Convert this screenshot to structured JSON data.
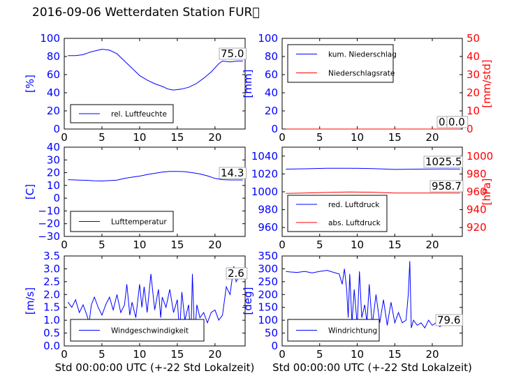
{
  "figure": {
    "title": "2016-09-06 Wetterdaten Station FUR\u0000"
  },
  "colors": {
    "primary": "#0000ff",
    "secondary": "#ff0000",
    "axis": "#000000"
  },
  "chart_data": [
    {
      "id": "humidity",
      "type": "line",
      "xlim": [
        0,
        24
      ],
      "ylim": [
        0,
        100
      ],
      "yticks": [
        "0",
        "20",
        "40",
        "60",
        "80",
        "100"
      ],
      "xticks": [
        "0",
        "5",
        "10",
        "15",
        "20"
      ],
      "ylabel": "[%]",
      "xlabel": "",
      "annotation": "75.0",
      "legend": {
        "placement": "lower-left",
        "entries": [
          "rel. Luftfeuchte"
        ]
      },
      "series": [
        {
          "name": "rel. Luftfeuchte",
          "color": "#0000ff",
          "x": [
            0.5,
            1.5,
            2.5,
            3.5,
            4.5,
            5.0,
            6.0,
            7.0,
            8.0,
            9.0,
            10.0,
            11.0,
            12.0,
            13.0,
            13.8,
            14.5,
            15.5,
            16.5,
            17.5,
            18.5,
            19.5,
            20.5,
            21.0,
            22.0,
            23.0,
            23.7
          ],
          "y": [
            81,
            81,
            82,
            85,
            87,
            88,
            87,
            83,
            75,
            67,
            59,
            54,
            50,
            47,
            44,
            43,
            44,
            46,
            50,
            56,
            63,
            72,
            75,
            74,
            75,
            75
          ]
        }
      ]
    },
    {
      "id": "precipitation",
      "type": "line",
      "xlim": [
        0,
        24
      ],
      "ylim": [
        0,
        100
      ],
      "yticks": [
        "0",
        "20",
        "40",
        "60",
        "80",
        "100"
      ],
      "y2lim": [
        0,
        50
      ],
      "y2ticks": [
        "0",
        "10",
        "20",
        "30",
        "40",
        "50"
      ],
      "xticks": [
        "0",
        "5",
        "10",
        "15",
        "20"
      ],
      "ylabel": "[mm]",
      "y2label": "[mm/std]",
      "xlabel": "",
      "annotations": [
        "0.0",
        "0.0"
      ],
      "legend": {
        "placement": "upper-left",
        "entries": [
          "kum. Niederschlag",
          "Niederschlagsrate"
        ]
      },
      "series": [
        {
          "name": "kum. Niederschlag",
          "color": "#0000ff",
          "x": [
            0.5,
            23.7
          ],
          "y": [
            0,
            0
          ]
        },
        {
          "name": "Niederschlagsrate",
          "color": "#ff0000",
          "axis": "right",
          "x": [
            0.5,
            23.7
          ],
          "y": [
            0,
            0
          ]
        }
      ]
    },
    {
      "id": "temperature",
      "type": "line",
      "xlim": [
        0,
        24
      ],
      "ylim": [
        -30,
        40
      ],
      "yticks": [
        "−30",
        "−20",
        "−10",
        "0",
        "10",
        "20",
        "30",
        "40"
      ],
      "xticks": [
        "0",
        "5",
        "10",
        "15",
        "20"
      ],
      "ylabel": "[C]",
      "xlabel": "",
      "annotation": "14.3",
      "legend": {
        "placement": "lower-left",
        "entries": [
          "Lufttemperatur"
        ]
      },
      "series": [
        {
          "name": "Lufttemperatur",
          "color": "#0000ff",
          "x": [
            0.5,
            2.0,
            3.0,
            4.0,
            5.0,
            6.0,
            7.0,
            8.0,
            9.0,
            10.0,
            11.0,
            12.0,
            13.0,
            14.0,
            15.0,
            16.0,
            17.0,
            18.0,
            19.0,
            20.0,
            21.0,
            22.0,
            23.0,
            23.7
          ],
          "y": [
            14.5,
            14.2,
            14,
            13.6,
            13.5,
            13.8,
            14.2,
            15.5,
            16.5,
            17.3,
            18.5,
            19.5,
            20.5,
            21,
            21,
            20.8,
            20,
            19,
            17.5,
            15.5,
            14.5,
            14.3,
            14.3,
            14.3
          ]
        }
      ]
    },
    {
      "id": "pressure",
      "type": "line",
      "xlim": [
        0,
        24
      ],
      "ylim": [
        950,
        1050
      ],
      "yticks": [
        "960",
        "980",
        "1000",
        "1020",
        "1040"
      ],
      "y2lim": [
        910,
        1010
      ],
      "y2ticks": [
        "920",
        "940",
        "960",
        "980",
        "1000"
      ],
      "xticks": [
        "0",
        "5",
        "10",
        "15",
        "20"
      ],
      "ylabel": "",
      "y2label": "[hPa]",
      "xlabel": "",
      "annotations": [
        "1025.5",
        "958.7"
      ],
      "legend": {
        "placement": "lower-left",
        "entries": [
          "red. Luftdruck",
          "abs. Luftdruck"
        ]
      },
      "series": [
        {
          "name": "red. Luftdruck",
          "color": "#0000ff",
          "x": [
            0.5,
            3.0,
            6.0,
            9.0,
            12.0,
            15.0,
            18.0,
            21.0,
            23.7
          ],
          "y": [
            1025.4,
            1025.8,
            1026.3,
            1026.4,
            1026.0,
            1025.1,
            1025.4,
            1025.6,
            1025.5
          ]
        },
        {
          "name": "abs. Luftdruck",
          "color": "#ff0000",
          "axis": "right",
          "x": [
            0.5,
            3.0,
            6.0,
            9.0,
            12.0,
            15.0,
            18.0,
            21.0,
            23.7
          ],
          "y": [
            958.3,
            958.6,
            959.3,
            959.8,
            959.5,
            958.7,
            958.7,
            958.7,
            958.7
          ]
        }
      ]
    },
    {
      "id": "wind-speed",
      "type": "line",
      "xlim": [
        0,
        24
      ],
      "ylim": [
        0,
        3.5
      ],
      "yticks": [
        "0.0",
        "0.5",
        "1.0",
        "1.5",
        "2.0",
        "2.5",
        "3.0",
        "3.5"
      ],
      "xticks": [
        "0",
        "5",
        "10",
        "15",
        "20"
      ],
      "ylabel": "[m/s]",
      "xlabel": "Std 00:00:00 UTC (+-22 Std Lokalzeit)",
      "annotation": "2.6",
      "legend": {
        "placement": "lower-left",
        "entries": [
          "Windgeschwindigkeit"
        ]
      },
      "series": [
        {
          "name": "Windgeschwindigkeit",
          "color": "#0000ff",
          "x": [
            0.5,
            1.0,
            1.5,
            2.0,
            2.5,
            3.0,
            3.3,
            3.6,
            4.0,
            4.5,
            5.0,
            5.5,
            6.0,
            6.5,
            7.0,
            7.5,
            8.0,
            8.3,
            8.7,
            9.0,
            9.5,
            10.0,
            10.3,
            10.6,
            11.0,
            11.5,
            12.0,
            12.5,
            12.8,
            13.0,
            13.5,
            14.0,
            14.5,
            15.0,
            15.3,
            15.6,
            16.0,
            16.5,
            16.8,
            17.0,
            17.3,
            17.6,
            18.0,
            18.5,
            19.0,
            19.5,
            20.0,
            20.5,
            21.0,
            21.5,
            22.0,
            22.5,
            22.8,
            23.0,
            23.3,
            23.7
          ],
          "y": [
            1.7,
            1.5,
            1.8,
            1.3,
            1.6,
            1.2,
            0.9,
            1.6,
            1.9,
            1.5,
            1.2,
            1.6,
            1.9,
            1.4,
            2.0,
            1.3,
            1.6,
            2.4,
            1.2,
            1.7,
            1.1,
            2.4,
            1.5,
            2.3,
            1.3,
            2.8,
            1.4,
            2.2,
            1.1,
            1.9,
            1.5,
            2.2,
            1.3,
            1.8,
            0.5,
            2.1,
            1.0,
            1.6,
            0.2,
            2.8,
            0.3,
            1.6,
            1.1,
            1.3,
            0.9,
            1.3,
            1.4,
            1.0,
            1.2,
            2.3,
            2.0,
            3.1,
            2.5,
            2.6,
            2.8,
            2.6
          ]
        }
      ]
    },
    {
      "id": "wind-direction",
      "type": "line",
      "xlim": [
        0,
        24
      ],
      "ylim": [
        0,
        350
      ],
      "yticks": [
        "0",
        "50",
        "100",
        "150",
        "200",
        "250",
        "300",
        "350"
      ],
      "xticks": [
        "0",
        "5",
        "10",
        "15",
        "20"
      ],
      "ylabel": "[deg]",
      "xlabel": "Std 00:00:00 UTC (+-22 Std Lokalzeit)",
      "annotation": "79.6",
      "legend": {
        "placement": "lower-left",
        "entries": [
          "Windrichtung"
        ]
      },
      "series": [
        {
          "name": "Windrichtung",
          "color": "#0000ff",
          "x": [
            0.5,
            1.0,
            2.0,
            3.0,
            4.0,
            5.0,
            6.0,
            7.0,
            7.6,
            8.0,
            8.3,
            8.6,
            8.8,
            9.0,
            9.3,
            9.6,
            10.0,
            10.3,
            10.6,
            11.0,
            11.3,
            11.6,
            12.0,
            12.5,
            13.0,
            13.5,
            14.0,
            14.5,
            15.0,
            15.5,
            16.0,
            16.5,
            16.8,
            17.0,
            17.2,
            17.5,
            18.0,
            18.5,
            19.0,
            19.5,
            20.0,
            20.5,
            21.0,
            21.5,
            22.0,
            22.5,
            23.0,
            23.7
          ],
          "y": [
            290,
            288,
            286,
            290,
            284,
            290,
            294,
            285,
            280,
            240,
            300,
            220,
            110,
            280,
            90,
            220,
            80,
            290,
            110,
            160,
            90,
            240,
            80,
            200,
            90,
            180,
            80,
            170,
            90,
            130,
            90,
            100,
            200,
            330,
            70,
            100,
            80,
            90,
            70,
            100,
            80,
            90,
            75,
            85,
            80,
            80,
            80,
            80
          ]
        }
      ]
    }
  ]
}
